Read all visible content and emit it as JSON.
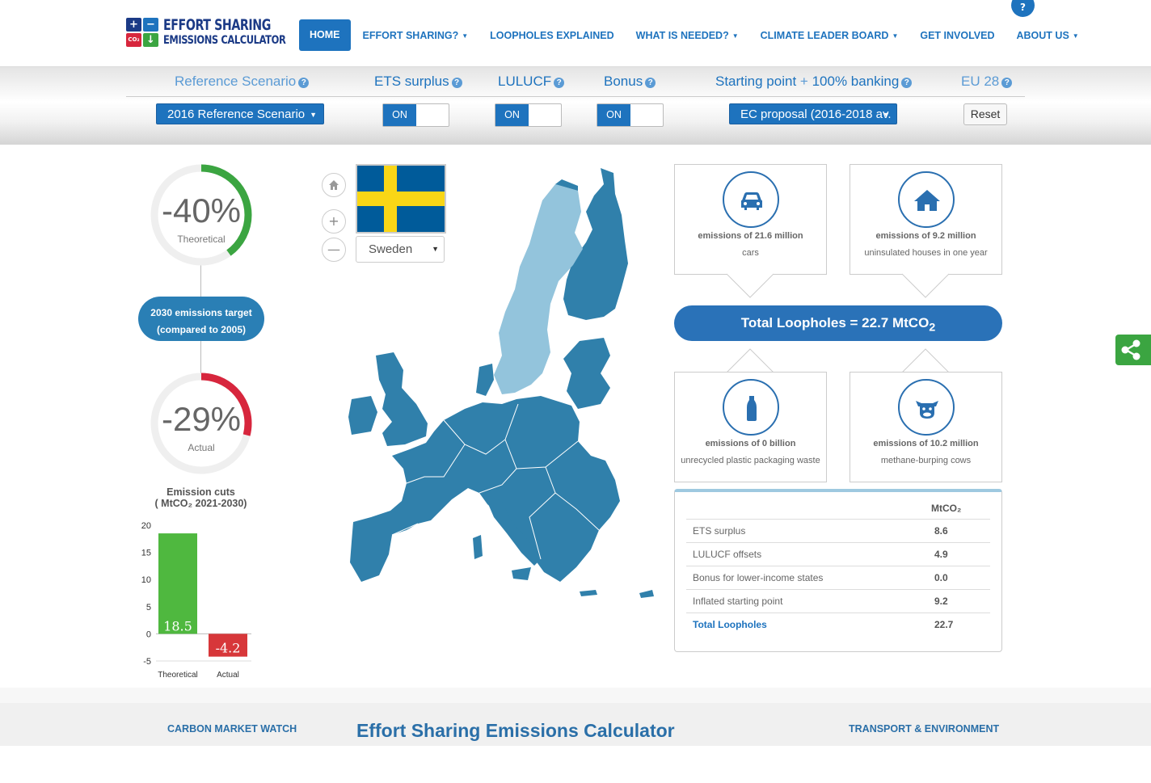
{
  "header": {
    "logo_line1": "EFFORT SHARING",
    "logo_line2": "EMISSIONS CALCULATOR",
    "logo_glyphs": [
      "+",
      "−",
      "CO₂",
      "↓"
    ],
    "nav": [
      "HOME",
      "EFFORT SHARING?",
      "LOOPHOLES EXPLAINED",
      "WHAT IS NEEDED?",
      "CLIMATE LEADER BOARD",
      "GET INVOLVED",
      "ABOUT US"
    ],
    "help": "?"
  },
  "controls": {
    "reference_label": "Reference Scenario",
    "ets_label": "ETS surplus",
    "lulucf_label": "LULUCF",
    "bonus_label": "Bonus",
    "starting_label": "Starting point",
    "plus": "+",
    "banking_label": "100% banking",
    "eu_label": "EU 28",
    "reference_value": "2016 Reference Scenario",
    "ets_state": "ON",
    "lulucf_state": "ON",
    "bonus_state": "ON",
    "starting_value": "EC proposal (2016-2018 av.",
    "reset": "Reset"
  },
  "gauges": {
    "theoretical": {
      "value": "-40%",
      "label": "Theoretical",
      "fraction": 0.4,
      "color": "#3ba541"
    },
    "actual": {
      "value": "-29%",
      "label": "Actual",
      "fraction": 0.29,
      "color": "#d7263d"
    },
    "target_line1": "2030 emissions target",
    "target_line2": "(compared to 2005)"
  },
  "emission_cuts": {
    "title1": "Emission cuts",
    "title2": "( MtCO₂ 2021-2030)"
  },
  "chart_data": {
    "type": "bar",
    "categories": [
      "Theoretical",
      "Actual"
    ],
    "values": [
      18.5,
      -4.2
    ],
    "colors": [
      "#4fb83f",
      "#d7373a"
    ],
    "yticks": [
      20,
      15,
      10,
      5,
      0,
      -5
    ],
    "ylim": [
      -5,
      20
    ]
  },
  "map": {
    "country": "Sweden",
    "highlight_color": "#93c4dc",
    "base_color": "#3080ab"
  },
  "loopholes": {
    "cards": [
      {
        "title": "emissions of 21.6 million",
        "subtitle": "cars",
        "icon": "car-icon"
      },
      {
        "title": "emissions of 9.2 million",
        "subtitle": "uninsulated houses in one year",
        "icon": "house-icon"
      },
      {
        "title": "emissions of 0 billion",
        "subtitle": "unrecycled plastic packaging waste",
        "icon": "bottle-icon"
      },
      {
        "title": "emissions of 10.2 million",
        "subtitle": "methane-burping cows",
        "icon": "cow-icon"
      }
    ],
    "total_text": "Total Loopholes = 22.7 MtCO",
    "total_sub": "2",
    "table_header": "MtCO₂",
    "rows": [
      {
        "label": "ETS surplus",
        "value": "8.6"
      },
      {
        "label": "LULUCF offsets",
        "value": "4.9"
      },
      {
        "label": "Bonus for lower-income states",
        "value": "0.0"
      },
      {
        "label": "Inflated starting point",
        "value": "9.2"
      },
      {
        "label": "Total Loopholes",
        "value": "22.7"
      }
    ]
  },
  "footer": {
    "left": "CARBON MARKET WATCH",
    "title": "Effort Sharing Emissions Calculator",
    "right": "TRANSPORT & ENVIRONMENT"
  }
}
